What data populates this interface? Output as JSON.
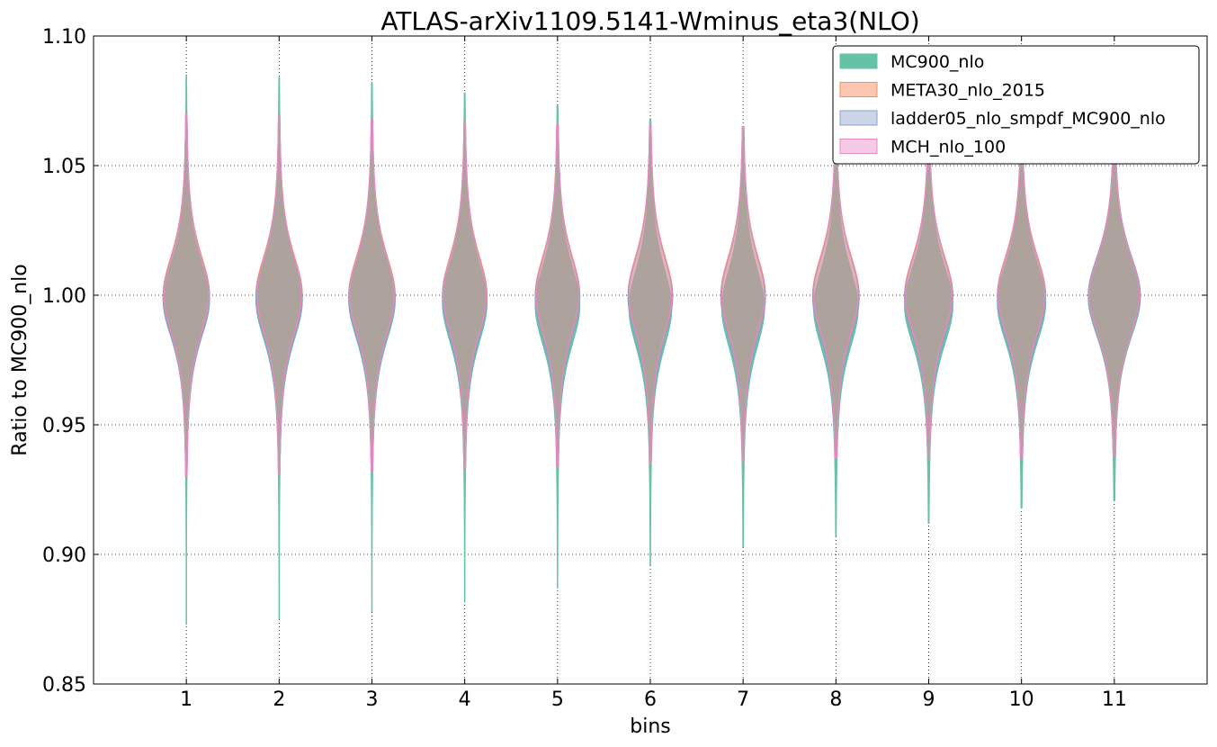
{
  "chart_data": {
    "type": "violin",
    "title": "ATLAS-arXiv1109.5141-Wminus_eta3(NLO)",
    "xlabel": "bins",
    "ylabel": "Ratio to MC900_nlo",
    "ylim": [
      0.85,
      1.1
    ],
    "xlim": [
      0,
      12
    ],
    "yticks": [
      "0.85",
      "0.90",
      "0.95",
      "1.00",
      "1.05",
      "1.10"
    ],
    "ytick_values": [
      0.85,
      0.9,
      0.95,
      1.0,
      1.05,
      1.1
    ],
    "categories": [
      "1",
      "2",
      "3",
      "4",
      "5",
      "6",
      "7",
      "8",
      "9",
      "10",
      "11"
    ],
    "grid": true,
    "legend_position": "top-right",
    "series": [
      {
        "name": "MC900_nlo",
        "fill": "#66c2a5",
        "stroke": "#66c2a5",
        "opacity": 1.0,
        "min": [
          0.873,
          0.875,
          0.878,
          0.882,
          0.887,
          0.896,
          0.903,
          0.907,
          0.912,
          0.918,
          0.921
        ],
        "max": [
          1.085,
          1.084,
          1.082,
          1.078,
          1.073,
          1.068,
          1.064,
          1.062,
          1.061,
          1.063,
          1.062
        ],
        "center": [
          0.998,
          0.998,
          0.998,
          0.997,
          0.996,
          0.995,
          0.995,
          0.995,
          0.996,
          0.997,
          0.999
        ],
        "spread": [
          0.017,
          0.018,
          0.018,
          0.018,
          0.018,
          0.018,
          0.018,
          0.018,
          0.018,
          0.018,
          0.018
        ],
        "max_halfwidth": [
          0.25,
          0.25,
          0.25,
          0.24,
          0.24,
          0.23,
          0.23,
          0.24,
          0.26,
          0.26,
          0.28
        ]
      },
      {
        "name": "META30_nlo_2015",
        "fill": "#fc8d62",
        "stroke": "#fc8d62",
        "opacity": 0.5,
        "min": [
          0.93,
          0.931,
          0.932,
          0.933,
          0.934,
          0.935,
          0.936,
          0.937,
          0.937,
          0.937,
          0.938
        ],
        "max": [
          1.07,
          1.069,
          1.068,
          1.067,
          1.066,
          1.066,
          1.065,
          1.065,
          1.065,
          1.065,
          1.065
        ],
        "center": [
          1.0,
          1.0,
          1.0,
          1.0,
          1.0,
          1.0,
          1.0,
          1.0,
          1.0,
          1.0,
          1.0
        ],
        "spread": [
          0.018,
          0.018,
          0.018,
          0.018,
          0.018,
          0.018,
          0.018,
          0.018,
          0.018,
          0.018,
          0.018
        ],
        "max_halfwidth": [
          0.25,
          0.25,
          0.25,
          0.24,
          0.24,
          0.24,
          0.24,
          0.25,
          0.26,
          0.26,
          0.28
        ]
      },
      {
        "name": "ladder05_nlo_smpdf_MC900_nlo",
        "fill": "#8da0cb",
        "stroke": "#8da0cb",
        "opacity": 0.28,
        "min": [
          0.93,
          0.931,
          0.932,
          0.933,
          0.934,
          0.935,
          0.936,
          0.937,
          0.937,
          0.937,
          0.938
        ],
        "max": [
          1.07,
          1.069,
          1.068,
          1.067,
          1.066,
          1.066,
          1.065,
          1.065,
          1.065,
          1.065,
          1.065
        ],
        "center": [
          0.999,
          0.999,
          0.999,
          0.999,
          0.999,
          0.999,
          0.999,
          0.999,
          0.999,
          0.999,
          1.0
        ],
        "spread": [
          0.018,
          0.018,
          0.018,
          0.018,
          0.018,
          0.018,
          0.018,
          0.018,
          0.018,
          0.018,
          0.018
        ],
        "max_halfwidth": [
          0.25,
          0.25,
          0.25,
          0.24,
          0.24,
          0.24,
          0.24,
          0.25,
          0.26,
          0.26,
          0.28
        ]
      },
      {
        "name": "MCH_nlo_100",
        "fill": "#e78ac3",
        "stroke": "#e78ac3",
        "opacity": 0.12,
        "min": [
          0.93,
          0.931,
          0.932,
          0.933,
          0.934,
          0.935,
          0.936,
          0.937,
          0.937,
          0.937,
          0.938
        ],
        "max": [
          1.07,
          1.069,
          1.068,
          1.067,
          1.066,
          1.066,
          1.065,
          1.065,
          1.065,
          1.065,
          1.065
        ],
        "center": [
          1.0,
          1.0,
          1.0,
          1.0,
          1.0,
          1.0,
          1.0,
          1.0,
          1.0,
          1.0,
          1.0
        ],
        "spread": [
          0.018,
          0.018,
          0.018,
          0.018,
          0.018,
          0.018,
          0.018,
          0.018,
          0.018,
          0.018,
          0.018
        ],
        "max_halfwidth": [
          0.24,
          0.24,
          0.24,
          0.23,
          0.23,
          0.23,
          0.23,
          0.24,
          0.25,
          0.25,
          0.27
        ]
      }
    ]
  }
}
